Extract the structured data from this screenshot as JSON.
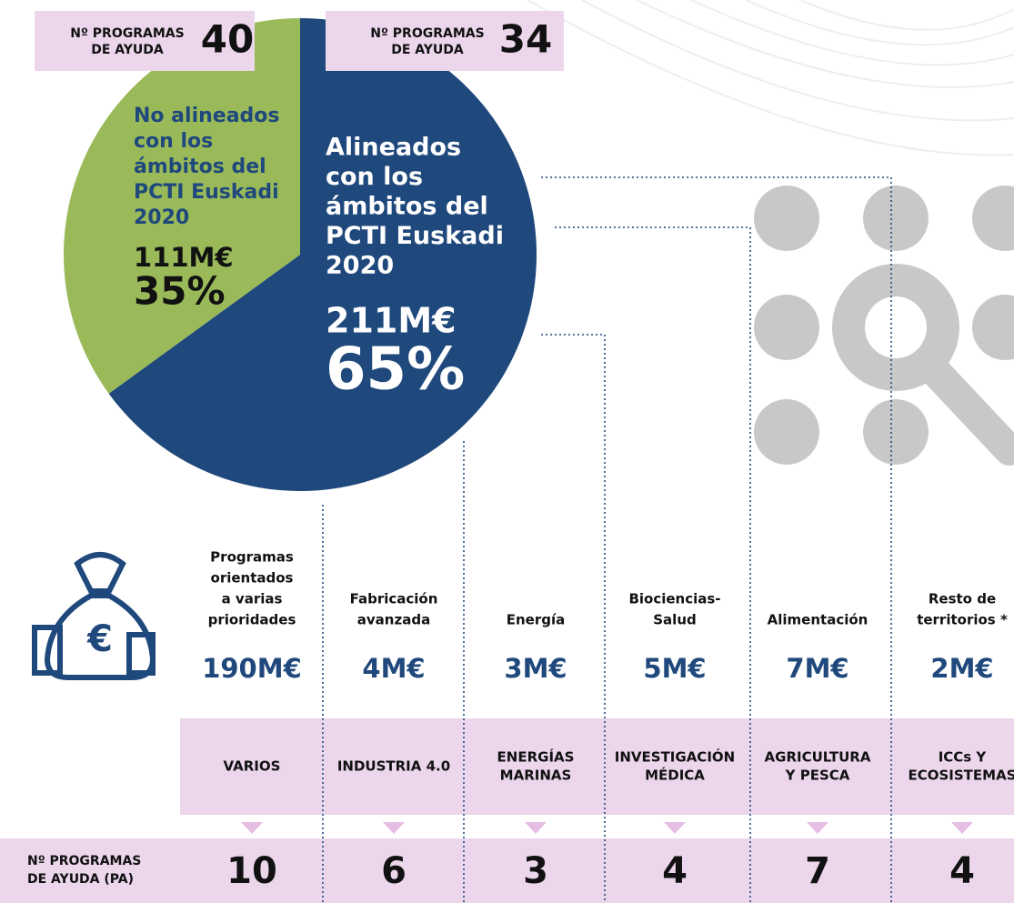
{
  "chart_data": {
    "type": "pie",
    "labels": [
      [
        "Alineados",
        "con los",
        "ámbitos del",
        "PCTI Euskadi",
        "2020"
      ],
      [
        "No alineados",
        "con los",
        "ámbitos del",
        "PCTI Euskadi",
        "2020"
      ]
    ],
    "values": [
      65,
      35
    ],
    "value_labels": [
      "65%",
      "35%"
    ],
    "amounts": [
      "211M€",
      "111M€"
    ],
    "colors": [
      "#1f487c",
      "#9aba5a"
    ],
    "programs_label": [
      [
        "Nº PROGRAMAS",
        "DE AYUDA"
      ],
      [
        "Nº PROGRAMAS",
        "DE AYUDA"
      ]
    ],
    "programs": [
      34,
      40
    ]
  },
  "sectors": [
    {
      "lines": [
        "Programas",
        "orientados",
        "a varias",
        "prioridades"
      ],
      "amount": "190M€",
      "area": [
        "VARIOS"
      ],
      "programs": 10
    },
    {
      "lines": [
        "Fabricación",
        "avanzada"
      ],
      "amount": "4M€",
      "area": [
        "INDUSTRIA 4.0"
      ],
      "programs": 6
    },
    {
      "lines": [
        "Energía"
      ],
      "amount": "3M€",
      "area": [
        "ENERGÍAS",
        "MARINAS"
      ],
      "programs": 3
    },
    {
      "lines": [
        "Biociencias-",
        "Salud"
      ],
      "amount": "5M€",
      "area": [
        "INVESTIGACIÓN",
        "MÉDICA"
      ],
      "programs": 4
    },
    {
      "lines": [
        "Alimentación"
      ],
      "amount": "7M€",
      "area": [
        "AGRICULTURA",
        "Y PESCA"
      ],
      "programs": 7
    },
    {
      "lines": [
        "Resto de",
        "territorios *"
      ],
      "amount": "2M€",
      "area": [
        "ICCs Y",
        "ECOSISTEMAS"
      ],
      "programs": 4
    }
  ],
  "programs_row_label": [
    "Nº PROGRAMAS",
    "DE AYUDA (PA)"
  ]
}
